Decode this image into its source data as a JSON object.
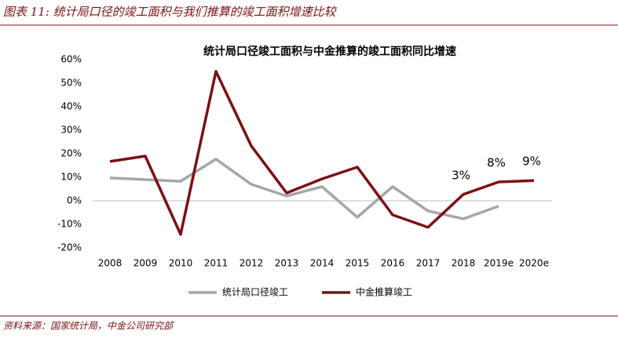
{
  "header": "图表 11: 统计局口径的竣工面积与我们推算的竣工面积增速比较",
  "source": "资料来源：国家统计局，中金公司研究部",
  "chart_data": {
    "type": "line",
    "title": "统计局口径竣工面积与中金推算的竣工面积同比增速",
    "categories": [
      "2008",
      "2009",
      "2010",
      "2011",
      "2012",
      "2013",
      "2014",
      "2015",
      "2016",
      "2017",
      "2018",
      "2019e",
      "2020e"
    ],
    "series": [
      {
        "name": "统计局口径竣工",
        "color": "#a6a6a6",
        "values": [
          9.7,
          9,
          8.3,
          17.7,
          7,
          2,
          6,
          -7,
          6,
          -4.3,
          -7.7,
          -2.3,
          null
        ]
      },
      {
        "name": "中金推算竣工",
        "color": "#7b1113",
        "values": [
          16.7,
          19,
          -14.3,
          55,
          23.3,
          3.3,
          9.3,
          14.3,
          -6,
          -11.3,
          2.7,
          8,
          8.6
        ],
        "value_labels": [
          null,
          null,
          null,
          null,
          null,
          null,
          null,
          null,
          null,
          null,
          "3%",
          "8%",
          "9%"
        ]
      }
    ],
    "ylim": [
      -20,
      60
    ],
    "yticks": [
      {
        "value": -20,
        "label": "-20%"
      },
      {
        "value": -10,
        "label": "-10%"
      },
      {
        "value": 0,
        "label": "0%"
      },
      {
        "value": 10,
        "label": "10%"
      },
      {
        "value": 20,
        "label": "20%"
      },
      {
        "value": 30,
        "label": "30%"
      },
      {
        "value": 40,
        "label": "40%"
      },
      {
        "value": 50,
        "label": "50%"
      },
      {
        "value": 60,
        "label": "60%"
      }
    ],
    "grid": false,
    "legend": "bottom"
  }
}
